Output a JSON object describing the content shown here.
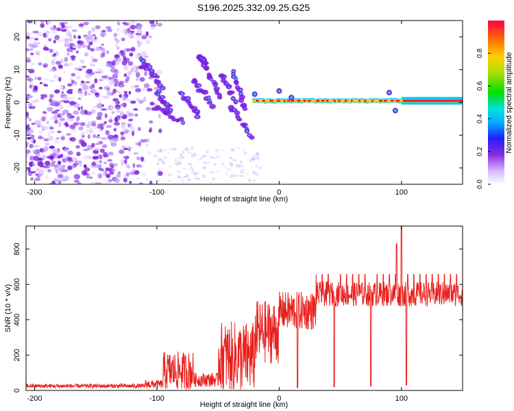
{
  "title": "S196.2025.332.09.25.G25",
  "colors": {
    "snr_line": "#e8201c",
    "band_core": "#ff1a1a",
    "band_mid": "#ffcc00",
    "band_outer": "#20d0ff",
    "blob_purple": "#8a2be2"
  },
  "chart_data": [
    {
      "type": "heatmap",
      "title": "S196.2025.332.09.25.G25",
      "xlabel": "Height of straight line (km)",
      "ylabel": "Frequency (Hz)",
      "xlim": [
        -207,
        150
      ],
      "ylim": [
        -25,
        25
      ],
      "xticks": [
        -200,
        -100,
        0,
        100
      ],
      "yticks": [
        -20,
        -10,
        0,
        10,
        20
      ],
      "colorbar": {
        "label": "Normalized spectral amplitude",
        "range": [
          0,
          1
        ],
        "ticks": [
          "0.0",
          "0.2",
          "0.4",
          "0.6",
          "0.8"
        ]
      },
      "features": [
        {
          "name": "noise_field",
          "x_range": [
            -207,
            -95
          ],
          "y_range": [
            -25,
            25
          ],
          "amplitude": 0.25
        },
        {
          "name": "transition_streaks",
          "x_range": [
            -110,
            -20
          ],
          "y_range": [
            -11,
            12
          ],
          "amplitude": 0.45
        },
        {
          "name": "stable_band",
          "x_range": [
            -22,
            150
          ],
          "center_freq_hz": 0.5,
          "amplitude": 1.0
        }
      ]
    },
    {
      "type": "line",
      "xlabel": "Height of straight line (km)",
      "ylabel": "SNR (10 * v/v)",
      "xlim": [
        -207,
        150
      ],
      "ylim": [
        0,
        930
      ],
      "xticks": [
        -200,
        -100,
        0,
        100
      ],
      "yticks": [
        0,
        200,
        400,
        600,
        800
      ],
      "series": [
        {
          "name": "SNR",
          "segments": [
            {
              "x_range": [
                -207,
                -110
              ],
              "mean": 25,
              "spread": 12
            },
            {
              "x_range": [
                -110,
                -95
              ],
              "mean": 35,
              "spread": 25
            },
            {
              "x_range": [
                -95,
                -70
              ],
              "mean": 110,
              "spread": 110
            },
            {
              "x_range": [
                -70,
                -50
              ],
              "mean": 60,
              "spread": 40
            },
            {
              "x_range": [
                -50,
                -20
              ],
              "mean": 190,
              "spread": 200
            },
            {
              "x_range": [
                -20,
                0
              ],
              "mean": 330,
              "spread": 180
            },
            {
              "x_range": [
                0,
                30
              ],
              "mean": 450,
              "spread": 110
            },
            {
              "x_range": [
                30,
                150
              ],
              "mean": 545,
              "spread": 70
            }
          ],
          "dips": [
            {
              "x": 15,
              "y": 15
            },
            {
              "x": 45,
              "y": 20
            },
            {
              "x": 75,
              "y": 25
            },
            {
              "x": 104,
              "y": 30
            }
          ],
          "spikes": [
            {
              "x": 96,
              "y": 830
            },
            {
              "x": 100,
              "y": 930
            }
          ]
        }
      ]
    }
  ]
}
